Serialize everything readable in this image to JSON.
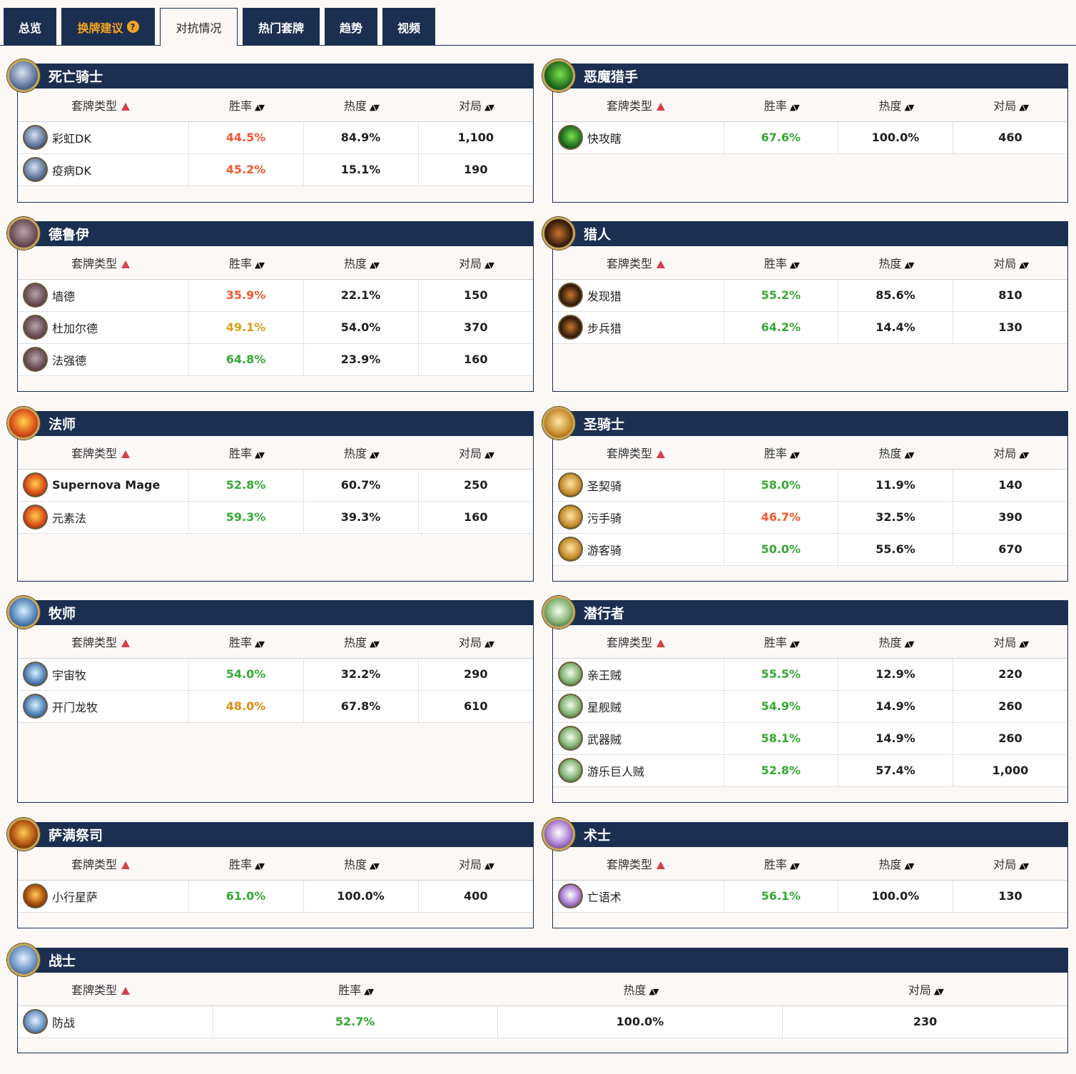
{
  "tabs": [
    {
      "label": "总览"
    },
    {
      "label": "换牌建议"
    },
    {
      "label": "对抗情况"
    },
    {
      "label": "热门套牌"
    },
    {
      "label": "趋势"
    },
    {
      "label": "视频"
    }
  ],
  "columns": {
    "deck": "套牌类型",
    "winrate": "胜率",
    "popularity": "热度",
    "games": "对局"
  },
  "colors": {
    "nav": "#1b2f50",
    "red": "#f0582e",
    "green": "#35a834",
    "orange": "#e08a14",
    "yellow": "#d9a016",
    "accent": "#f4a321"
  },
  "panels": [
    {
      "class": "死亡骑士",
      "icon": "death-knight-icon",
      "rows": [
        {
          "deck": "彩虹DK",
          "winrate": "44.5%",
          "popularity": "84.9%",
          "games": "1,100"
        },
        {
          "deck": "疫病DK",
          "winrate": "45.2%",
          "popularity": "15.1%",
          "games": "190"
        }
      ]
    },
    {
      "class": "恶魔猎手",
      "icon": "demon-hunter-icon",
      "rows": [
        {
          "deck": "快攻瞎",
          "winrate": "67.6%",
          "popularity": "100.0%",
          "games": "460"
        }
      ]
    },
    {
      "class": "德鲁伊",
      "icon": "druid-icon",
      "rows": [
        {
          "deck": "墙德",
          "winrate": "35.9%",
          "popularity": "22.1%",
          "games": "150"
        },
        {
          "deck": "杜加尔德",
          "winrate": "49.1%",
          "popularity": "54.0%",
          "games": "370"
        },
        {
          "deck": "法强德",
          "winrate": "64.8%",
          "popularity": "23.9%",
          "games": "160"
        }
      ]
    },
    {
      "class": "猎人",
      "icon": "hunter-icon",
      "rows": [
        {
          "deck": "发现猎",
          "winrate": "55.2%",
          "popularity": "85.6%",
          "games": "810"
        },
        {
          "deck": "步兵猎",
          "winrate": "64.2%",
          "popularity": "14.4%",
          "games": "130"
        }
      ]
    },
    {
      "class": "法师",
      "icon": "mage-icon",
      "rows": [
        {
          "deck": "Supernova Mage",
          "winrate": "52.8%",
          "popularity": "60.7%",
          "games": "250"
        },
        {
          "deck": "元素法",
          "winrate": "59.3%",
          "popularity": "39.3%",
          "games": "160"
        }
      ]
    },
    {
      "class": "圣骑士",
      "icon": "paladin-icon",
      "rows": [
        {
          "deck": "圣契骑",
          "winrate": "58.0%",
          "popularity": "11.9%",
          "games": "140"
        },
        {
          "deck": "污手骑",
          "winrate": "46.7%",
          "popularity": "32.5%",
          "games": "390"
        },
        {
          "deck": "游客骑",
          "winrate": "50.0%",
          "popularity": "55.6%",
          "games": "670"
        }
      ]
    },
    {
      "class": "牧师",
      "icon": "priest-icon",
      "rows": [
        {
          "deck": "宇宙牧",
          "winrate": "54.0%",
          "popularity": "32.2%",
          "games": "290"
        },
        {
          "deck": "开门龙牧",
          "winrate": "48.0%",
          "popularity": "67.8%",
          "games": "610"
        }
      ]
    },
    {
      "class": "潜行者",
      "icon": "rogue-icon",
      "rows": [
        {
          "deck": "亲王贼",
          "winrate": "55.5%",
          "popularity": "12.9%",
          "games": "220"
        },
        {
          "deck": "星舰贼",
          "winrate": "54.9%",
          "popularity": "14.9%",
          "games": "260"
        },
        {
          "deck": "武器贼",
          "winrate": "58.1%",
          "popularity": "14.9%",
          "games": "260"
        },
        {
          "deck": "游乐巨人贼",
          "winrate": "52.8%",
          "popularity": "57.4%",
          "games": "1,000"
        }
      ]
    },
    {
      "class": "萨满祭司",
      "icon": "shaman-icon",
      "rows": [
        {
          "deck": "小行星萨",
          "winrate": "61.0%",
          "popularity": "100.0%",
          "games": "400"
        }
      ]
    },
    {
      "class": "术士",
      "icon": "warlock-icon",
      "rows": [
        {
          "deck": "亡语术",
          "winrate": "56.1%",
          "popularity": "100.0%",
          "games": "130"
        }
      ]
    },
    {
      "class": "战士",
      "icon": "warrior-icon",
      "rows": [
        {
          "deck": "防战",
          "winrate": "52.7%",
          "popularity": "100.0%",
          "games": "230"
        }
      ]
    }
  ]
}
